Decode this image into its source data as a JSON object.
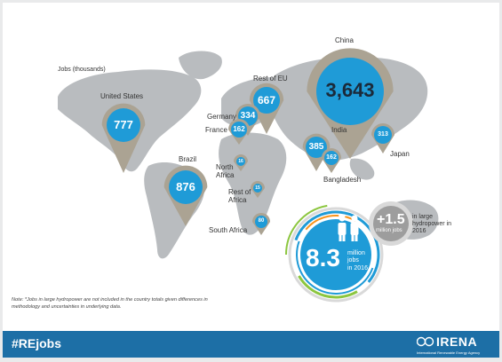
{
  "legend_label": "Jobs (thousands)",
  "markers": [
    {
      "country": "China",
      "value": "3,643"
    },
    {
      "country": "United States",
      "value": "777"
    },
    {
      "country": "Brazil",
      "value": "876"
    },
    {
      "country": "Rest of EU",
      "value": "667"
    },
    {
      "country": "Germany",
      "value": "334"
    },
    {
      "country": "France",
      "value": "162"
    },
    {
      "country": "India",
      "value": "385"
    },
    {
      "country": "Bangladesh",
      "value": "162"
    },
    {
      "country": "Japan",
      "value": "313"
    },
    {
      "country": "North Africa",
      "value": "16"
    },
    {
      "country": "Rest of Africa",
      "value": "15"
    },
    {
      "country": "South Africa",
      "value": "80"
    }
  ],
  "total": {
    "value": "8.3",
    "unit": "million jobs",
    "period": "in 2016"
  },
  "hydro": {
    "value": "+1.5",
    "unit": "million jobs",
    "note": "in large hydropower in 2016"
  },
  "footnote": "Note: *Jobs in large hydropower are not included in the country totals given differences in methodology and uncertainties in underlying data.",
  "footer": {
    "hashtag": "#REjobs",
    "org": "IRENA",
    "org_full": "International Renewable Energy Agency"
  },
  "colors": {
    "marker_fill": "#1f9bd7",
    "pin": "#aba393",
    "map": "#b9bcbf",
    "footer": "#1d6fa6"
  }
}
